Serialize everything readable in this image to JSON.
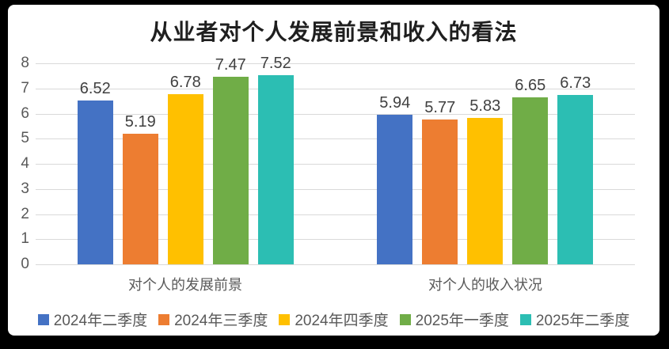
{
  "frame": {
    "background_color": "#000000",
    "card_background_color": "#ffffff"
  },
  "chart_data": {
    "type": "bar",
    "title": "从业者对个人发展前景和收入的看法",
    "categories": [
      "对个人的发展前景",
      "对个人的收入状况"
    ],
    "series": [
      {
        "name": "2024年二季度",
        "color": "#4472C4",
        "values": [
          6.52,
          5.94
        ]
      },
      {
        "name": "2024年三季度",
        "color": "#ED7D31",
        "values": [
          5.19,
          5.77
        ]
      },
      {
        "name": "2024年四季度",
        "color": "#FFC000",
        "values": [
          6.78,
          5.83
        ]
      },
      {
        "name": "2025年一季度",
        "color": "#70AD47",
        "values": [
          7.47,
          6.65
        ]
      },
      {
        "name": "2025年二季度",
        "color": "#2CBEB3",
        "values": [
          7.52,
          6.73
        ]
      }
    ],
    "ylim": [
      0,
      8
    ],
    "yticks": [
      0,
      1,
      2,
      3,
      4,
      5,
      6,
      7,
      8
    ],
    "grid": true,
    "gridline_color": "#d9d9d9",
    "value_labels": true,
    "value_label_color": "#404040",
    "axis_tick_color": "#595959",
    "legend_position": "bottom"
  }
}
